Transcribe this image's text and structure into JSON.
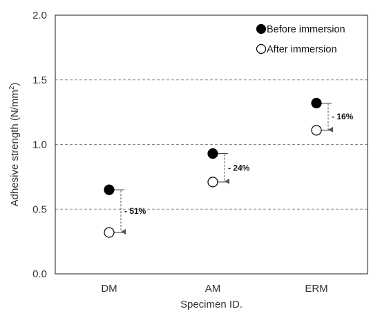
{
  "chart_data": {
    "type": "scatter",
    "title": "",
    "xlabel": "Specimen ID.",
    "ylabel": "Adhesive strength (N/mm²)",
    "ylabel_main": "Adhesive strength (N/mm",
    "ylabel_sup": "2",
    "ylabel_close": ")",
    "categories": [
      "DM",
      "AM",
      "ERM"
    ],
    "ylim": [
      0,
      2.0
    ],
    "yticks": [
      0.0,
      0.5,
      1.0,
      1.5,
      2.0
    ],
    "ytick_labels": [
      "0.0",
      "0.5",
      "1.0",
      "1.5",
      "2.0"
    ],
    "grid": "horizontal dashed at 0.5, 1.0, 1.5",
    "legend_position": "top-right",
    "series": [
      {
        "name": "Before immersion",
        "marker": "filled-circle",
        "color": "#000000",
        "values": [
          0.65,
          0.93,
          1.32
        ]
      },
      {
        "name": "After immersion",
        "marker": "open-circle",
        "color": "#000000",
        "values": [
          0.32,
          0.71,
          1.11
        ]
      }
    ],
    "annotations": [
      "- 51%",
      "- 24%",
      "- 16%"
    ]
  }
}
